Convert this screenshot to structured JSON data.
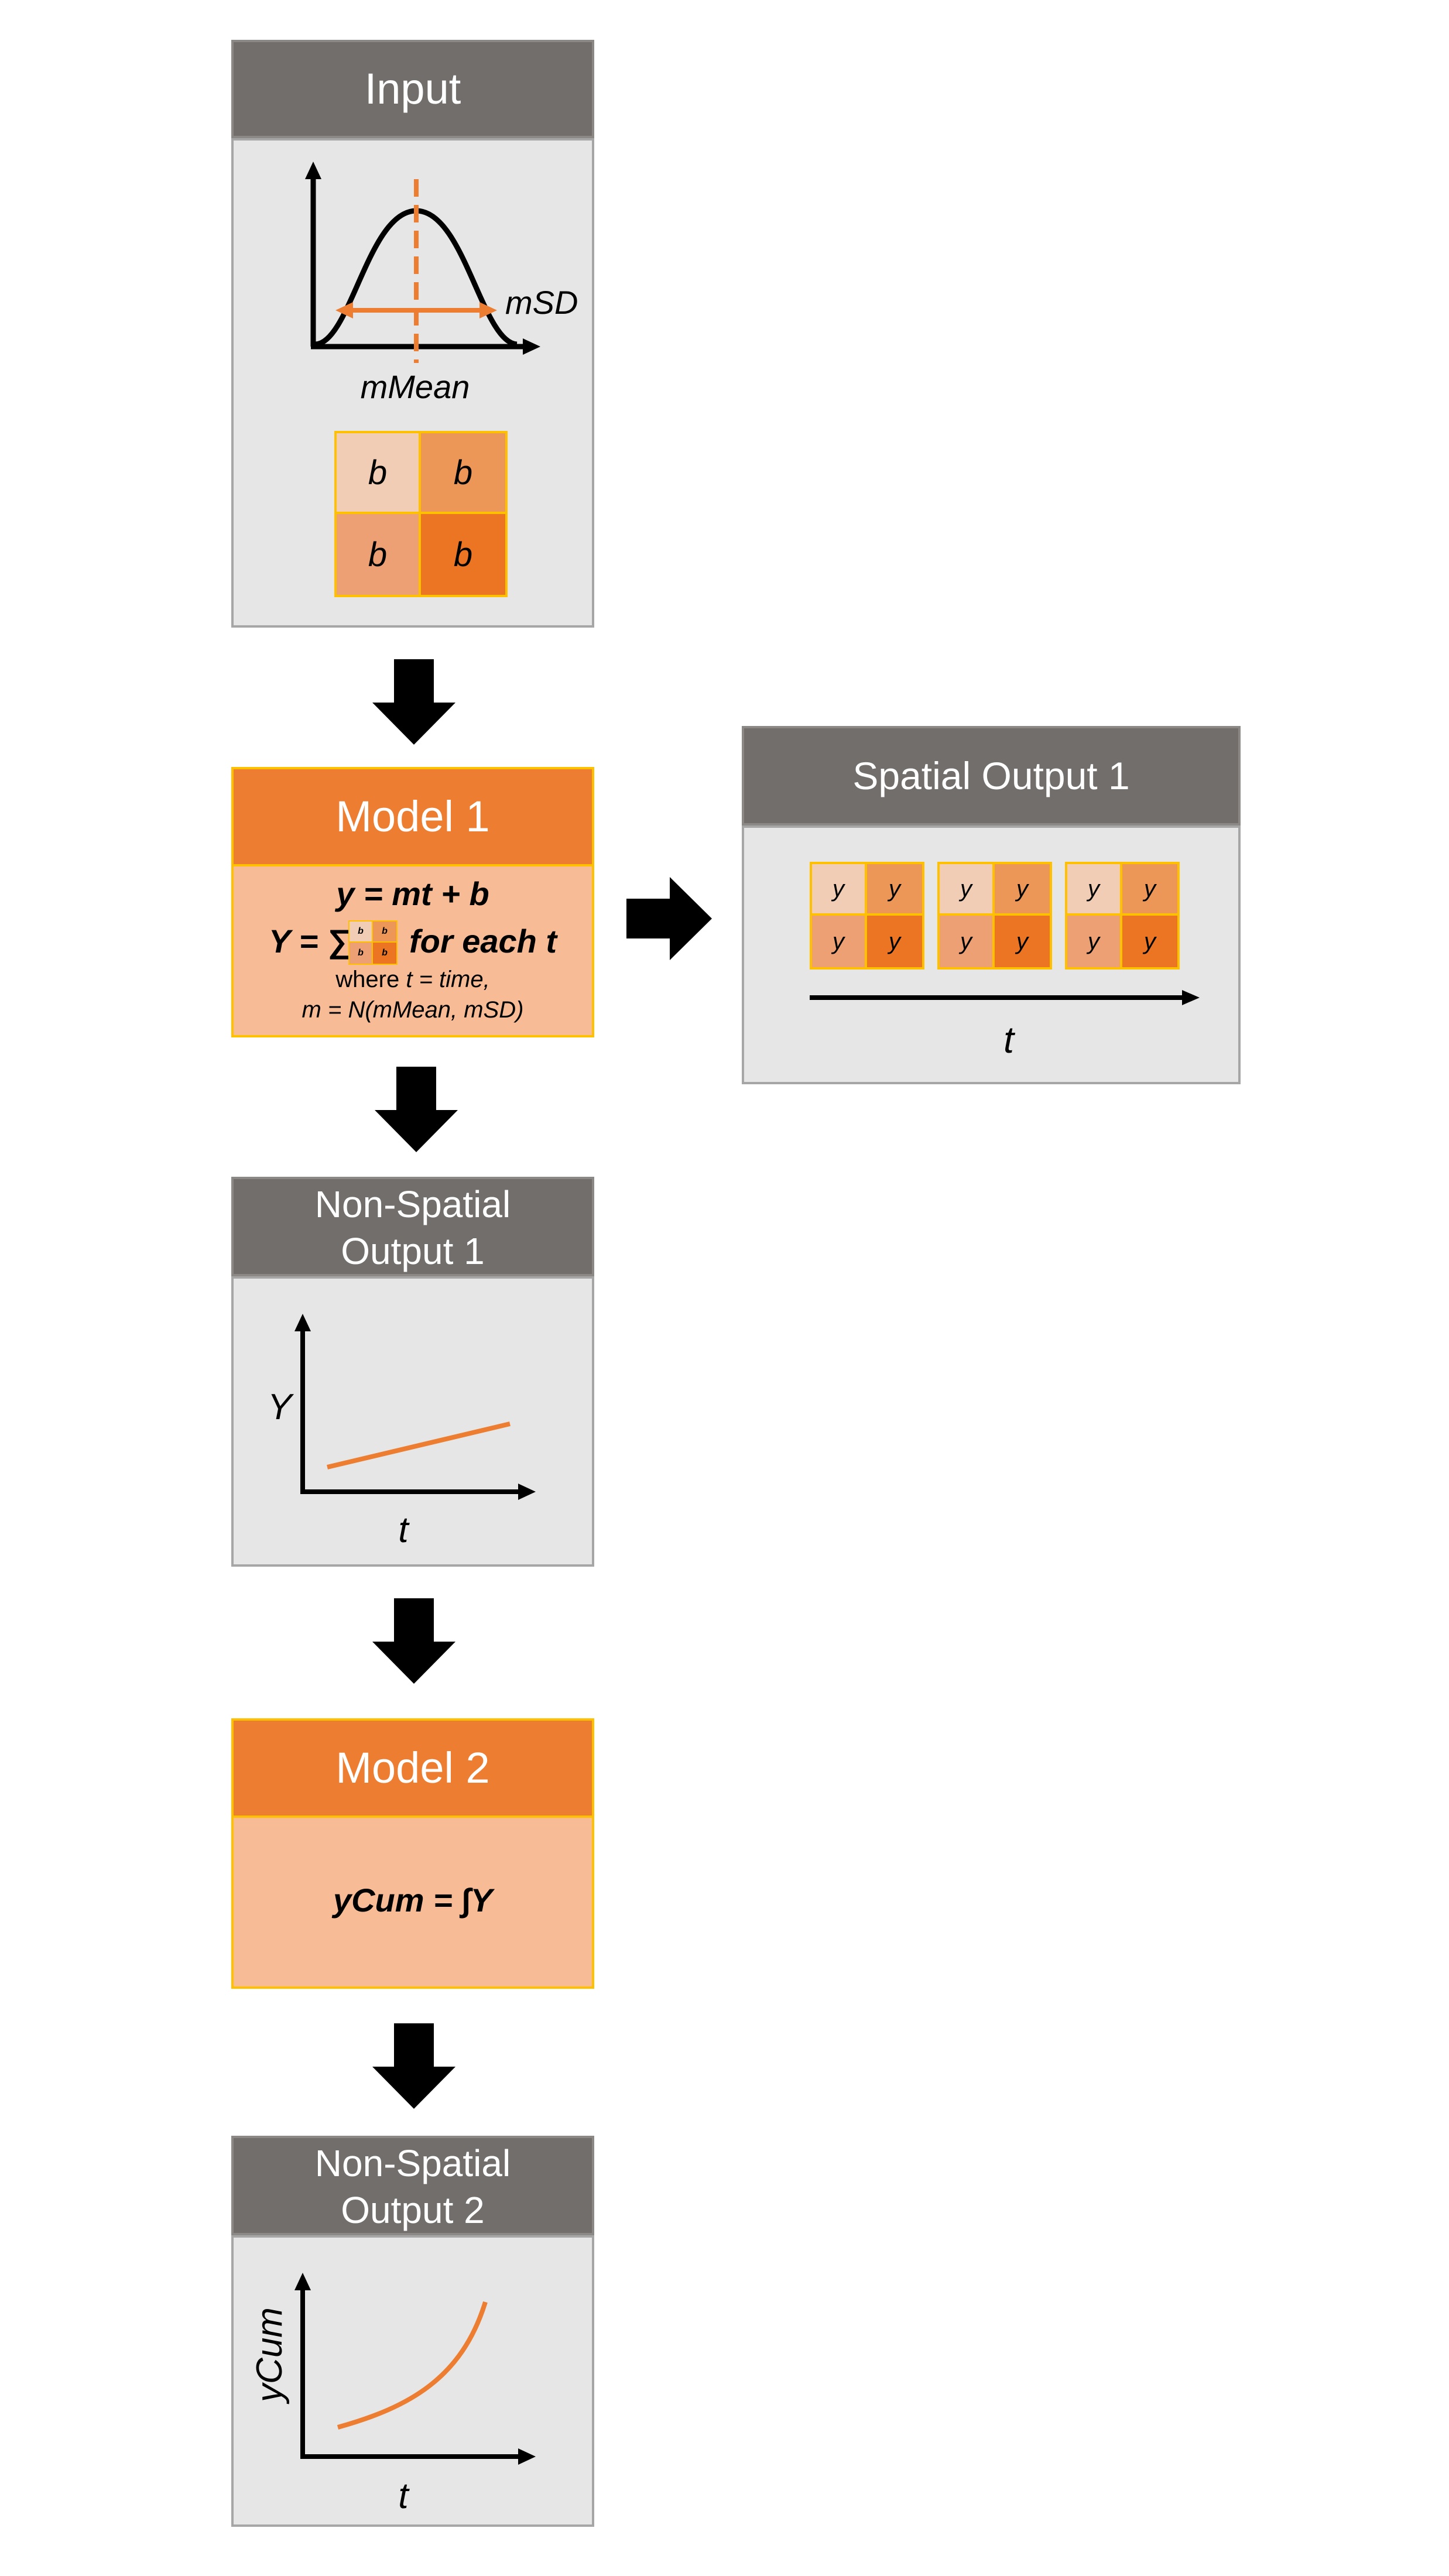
{
  "colors": {
    "header_gray": "#726e6c",
    "panel_gray": "#e6e6e6",
    "model_orange": "#ec7d31",
    "model_body": "#f7bc96",
    "outline_gold": "#ffc000",
    "arrow": "#000000"
  },
  "input": {
    "title": "Input",
    "sd_label": "mSD",
    "mean_label": "mMean",
    "grid_label": "b"
  },
  "model1": {
    "title": "Model 1",
    "eq1": "y = mt + b",
    "eq2_prefix": "Y = ∑",
    "eq2_suffix": "for each t",
    "mini_cell": "b",
    "where_word": "where",
    "where_rest": "t = time,",
    "m_def": "m = N(mMean, mSD)"
  },
  "spatial1": {
    "title": "Spatial Output 1",
    "cell_label": "y",
    "axis_label": "t"
  },
  "nonspatial1": {
    "title_line1": "Non-Spatial",
    "title_line2": "Output 1",
    "y_label": "Y",
    "x_label": "t"
  },
  "model2": {
    "title": "Model 2",
    "equation": "yCum = ∫Y"
  },
  "nonspatial2": {
    "title_line1": "Non-Spatial",
    "title_line2": "Output 2",
    "y_label": "yCum",
    "x_label": "t"
  }
}
